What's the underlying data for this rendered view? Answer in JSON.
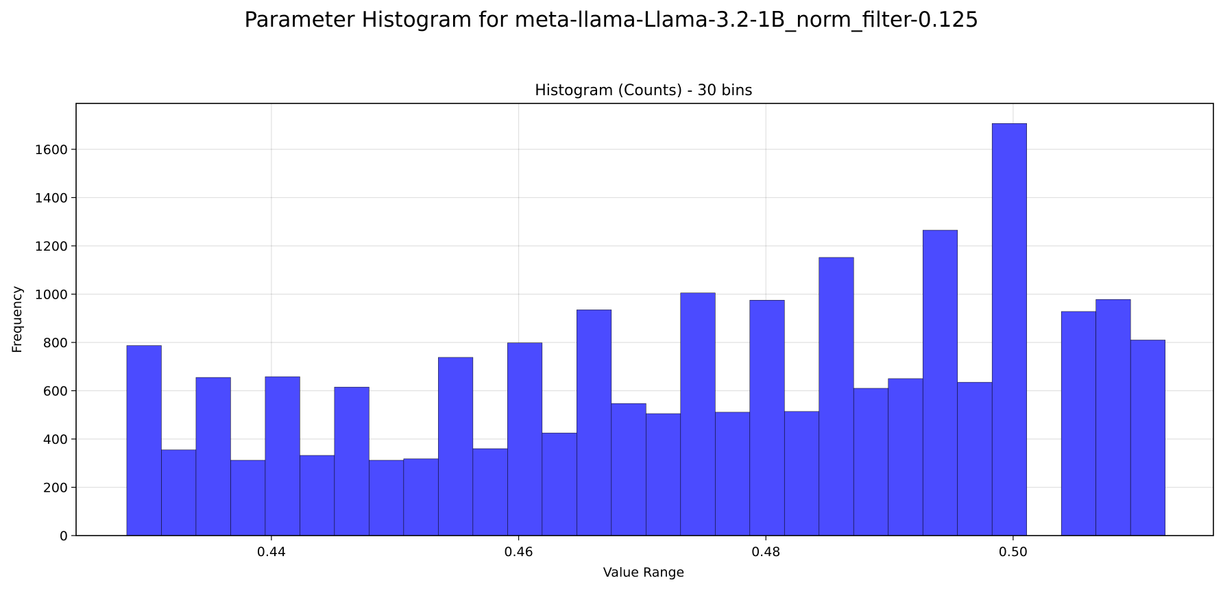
{
  "suptitle": "Parameter Histogram for meta-llama-Llama-3.2-1B_norm_filter-0.125",
  "chart_data": {
    "type": "bar",
    "title": "Histogram (Counts) - 30 bins",
    "xlabel": "Value Range",
    "ylabel": "Frequency",
    "xlim": [
      0.4242,
      0.5162
    ],
    "ylim": [
      0,
      1790
    ],
    "x_ticks": [
      0.44,
      0.46,
      0.48,
      0.5
    ],
    "x_tick_labels": [
      "0.44",
      "0.46",
      "0.48",
      "0.50"
    ],
    "y_ticks": [
      0,
      200,
      400,
      600,
      800,
      1000,
      1200,
      1400,
      1600
    ],
    "y_tick_labels": [
      "0",
      "200",
      "400",
      "600",
      "800",
      "1000",
      "1200",
      "1400",
      "1600"
    ],
    "bin_start": 0.4283,
    "bin_width": 0.0028,
    "values": [
      787,
      355,
      655,
      312,
      658,
      332,
      615,
      312,
      318,
      738,
      360,
      798,
      425,
      935,
      547,
      505,
      1005,
      511,
      975,
      514,
      1152,
      610,
      650,
      1265,
      635,
      1707,
      0,
      928,
      978,
      810
    ],
    "bar_color": "#4b4bff",
    "edge_color": "#000000",
    "grid": true
  }
}
